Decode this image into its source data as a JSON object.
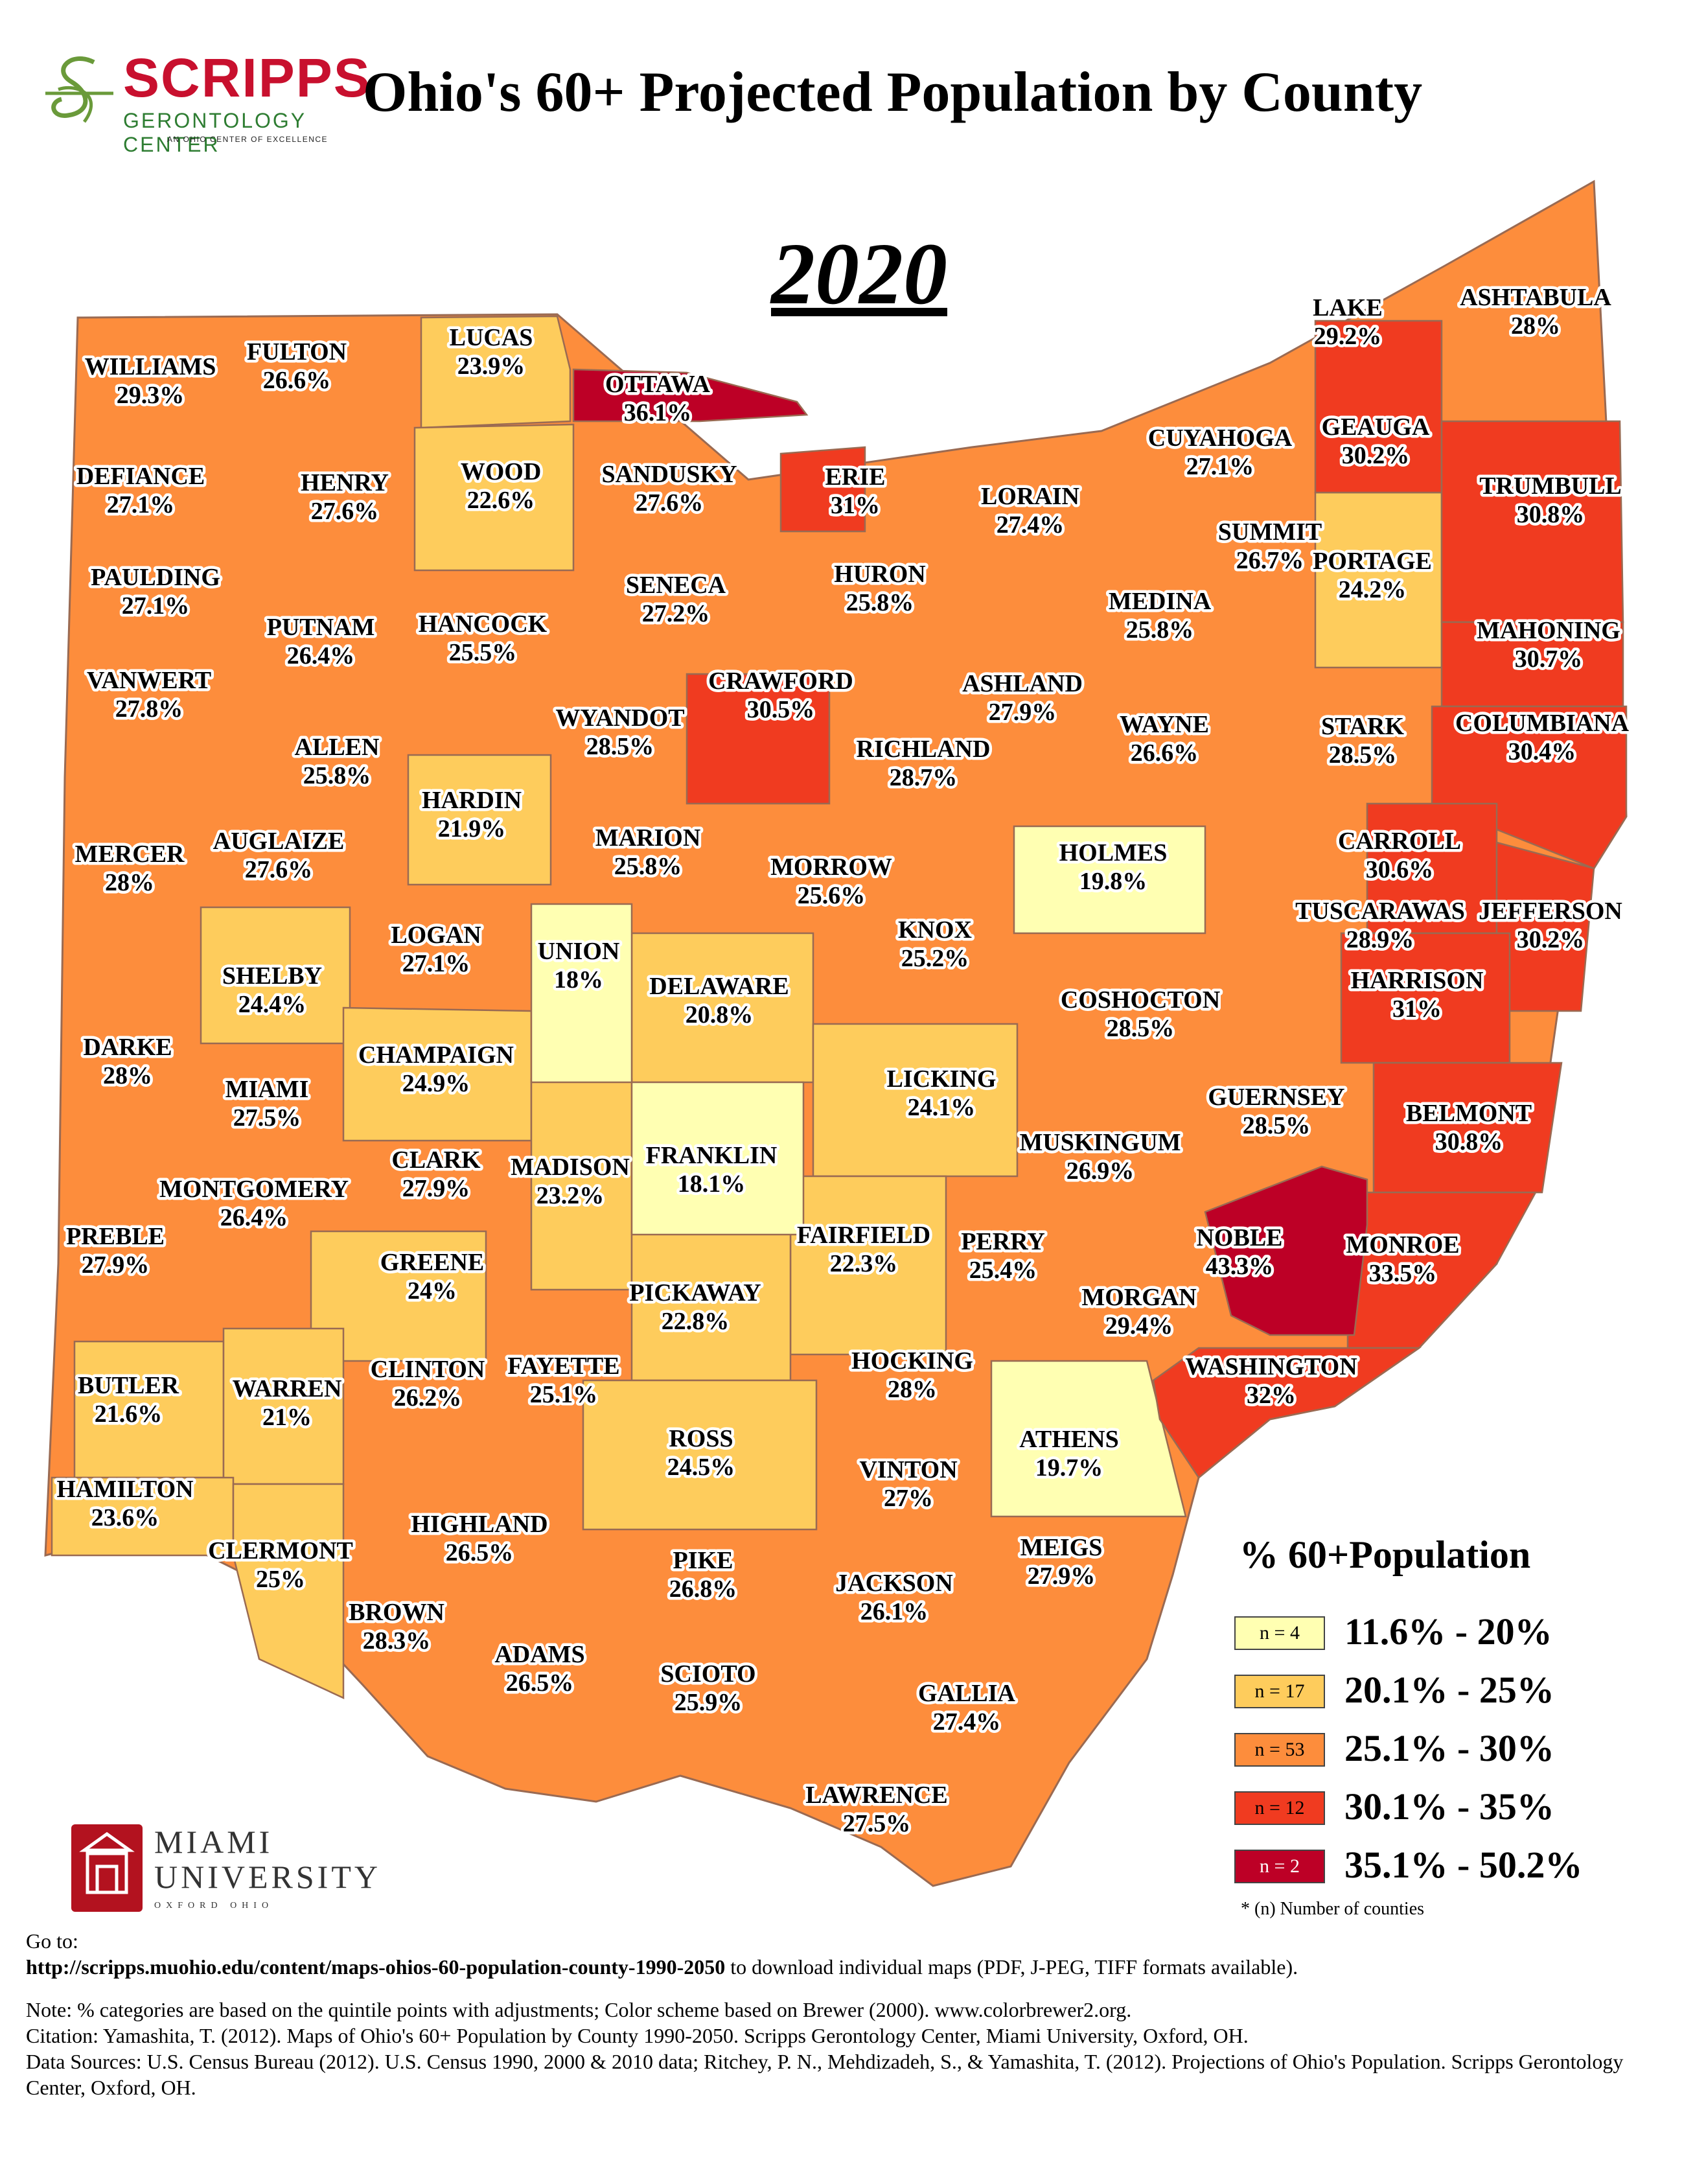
{
  "header": {
    "logo_word": "SCRIPPS",
    "logo_sub": "GERONTOLOGY CENTER",
    "logo_sub2": "AN OHIO CENTER OF EXCELLENCE",
    "title": "Ohio's 60+ Projected Population by County",
    "year": "2020"
  },
  "colors": {
    "class1": "#ffffb2",
    "class2": "#fecc5c",
    "class3": "#fd8d3c",
    "class4": "#f03b20",
    "class5": "#bd0026",
    "boundary": "#9a6a52"
  },
  "legend": {
    "title": "% 60+Population",
    "classes": [
      {
        "count": "n = 4",
        "range": "11.6% - 20%"
      },
      {
        "count": "n = 17",
        "range": "20.1% - 25%"
      },
      {
        "count": "n = 53",
        "range": "25.1% - 30%"
      },
      {
        "count": "n = 12",
        "range": "30.1% - 35%"
      },
      {
        "count": "n = 2",
        "range": "35.1% - 50.2%"
      }
    ],
    "note": "* (n) Number of counties"
  },
  "counties": [
    {
      "name": "WILLIAMS",
      "value": "29.3%"
    },
    {
      "name": "FULTON",
      "value": "26.6%"
    },
    {
      "name": "LUCAS",
      "value": "23.9%"
    },
    {
      "name": "OTTAWA",
      "value": "36.1%"
    },
    {
      "name": "DEFIANCE",
      "value": "27.1%"
    },
    {
      "name": "HENRY",
      "value": "27.6%"
    },
    {
      "name": "WOOD",
      "value": "22.6%"
    },
    {
      "name": "SANDUSKY",
      "value": "27.6%"
    },
    {
      "name": "ERIE",
      "value": "31%"
    },
    {
      "name": "LORAIN",
      "value": "27.4%"
    },
    {
      "name": "CUYAHOGA",
      "value": "27.1%"
    },
    {
      "name": "LAKE",
      "value": "29.2%"
    },
    {
      "name": "GEAUGA",
      "value": "30.2%"
    },
    {
      "name": "ASHTABULA",
      "value": "28%"
    },
    {
      "name": "TRUMBULL",
      "value": "30.8%"
    },
    {
      "name": "PAULDING",
      "value": "27.1%"
    },
    {
      "name": "PUTNAM",
      "value": "26.4%"
    },
    {
      "name": "HANCOCK",
      "value": "25.5%"
    },
    {
      "name": "SENECA",
      "value": "27.2%"
    },
    {
      "name": "HURON",
      "value": "25.8%"
    },
    {
      "name": "MEDINA",
      "value": "25.8%"
    },
    {
      "name": "SUMMIT",
      "value": "26.7%"
    },
    {
      "name": "PORTAGE",
      "value": "24.2%"
    },
    {
      "name": "MAHONING",
      "value": "30.7%"
    },
    {
      "name": "VANWERT",
      "value": "27.8%"
    },
    {
      "name": "ALLEN",
      "value": "25.8%"
    },
    {
      "name": "WYANDOT",
      "value": "28.5%"
    },
    {
      "name": "CRAWFORD",
      "value": "30.5%"
    },
    {
      "name": "ASHLAND",
      "value": "27.9%"
    },
    {
      "name": "RICHLAND",
      "value": "28.7%"
    },
    {
      "name": "WAYNE",
      "value": "26.6%"
    },
    {
      "name": "STARK",
      "value": "28.5%"
    },
    {
      "name": "COLUMBIANA",
      "value": "30.4%"
    },
    {
      "name": "MERCER",
      "value": "28%"
    },
    {
      "name": "AUGLAIZE",
      "value": "27.6%"
    },
    {
      "name": "HARDIN",
      "value": "21.9%"
    },
    {
      "name": "MARION",
      "value": "25.8%"
    },
    {
      "name": "MORROW",
      "value": "25.6%"
    },
    {
      "name": "HOLMES",
      "value": "19.8%"
    },
    {
      "name": "CARROLL",
      "value": "30.6%"
    },
    {
      "name": "TUSCARAWAS",
      "value": "28.9%"
    },
    {
      "name": "JEFFERSON",
      "value": "30.2%"
    },
    {
      "name": "SHELBY",
      "value": "24.4%"
    },
    {
      "name": "LOGAN",
      "value": "27.1%"
    },
    {
      "name": "UNION",
      "value": "18%"
    },
    {
      "name": "DELAWARE",
      "value": "20.8%"
    },
    {
      "name": "KNOX",
      "value": "25.2%"
    },
    {
      "name": "COSHOCTON",
      "value": "28.5%"
    },
    {
      "name": "HARRISON",
      "value": "31%"
    },
    {
      "name": "DARKE",
      "value": "28%"
    },
    {
      "name": "MIAMI",
      "value": "27.5%"
    },
    {
      "name": "CHAMPAIGN",
      "value": "24.9%"
    },
    {
      "name": "LICKING",
      "value": "24.1%"
    },
    {
      "name": "GUERNSEY",
      "value": "28.5%"
    },
    {
      "name": "BELMONT",
      "value": "30.8%"
    },
    {
      "name": "CLARK",
      "value": "27.9%"
    },
    {
      "name": "MADISON",
      "value": "23.2%"
    },
    {
      "name": "FRANKLIN",
      "value": "18.1%"
    },
    {
      "name": "MUSKINGUM",
      "value": "26.9%"
    },
    {
      "name": "MONTGOMERY",
      "value": "26.4%"
    },
    {
      "name": "PREBLE",
      "value": "27.9%"
    },
    {
      "name": "GREENE",
      "value": "24%"
    },
    {
      "name": "FAIRFIELD",
      "value": "22.3%"
    },
    {
      "name": "PERRY",
      "value": "25.4%"
    },
    {
      "name": "NOBLE",
      "value": "43.3%"
    },
    {
      "name": "MONROE",
      "value": "33.5%"
    },
    {
      "name": "PICKAWAY",
      "value": "22.8%"
    },
    {
      "name": "MORGAN",
      "value": "29.4%"
    },
    {
      "name": "BUTLER",
      "value": "21.6%"
    },
    {
      "name": "WARREN",
      "value": "21%"
    },
    {
      "name": "CLINTON",
      "value": "26.2%"
    },
    {
      "name": "FAYETTE",
      "value": "25.1%"
    },
    {
      "name": "HOCKING",
      "value": "28%"
    },
    {
      "name": "WASHINGTON",
      "value": "32%"
    },
    {
      "name": "ROSS",
      "value": "24.5%"
    },
    {
      "name": "ATHENS",
      "value": "19.7%"
    },
    {
      "name": "VINTON",
      "value": "27%"
    },
    {
      "name": "HAMILTON",
      "value": "23.6%"
    },
    {
      "name": "CLERMONT",
      "value": "25%"
    },
    {
      "name": "HIGHLAND",
      "value": "26.5%"
    },
    {
      "name": "PIKE",
      "value": "26.8%"
    },
    {
      "name": "JACKSON",
      "value": "26.1%"
    },
    {
      "name": "MEIGS",
      "value": "27.9%"
    },
    {
      "name": "BROWN",
      "value": "28.3%"
    },
    {
      "name": "ADAMS",
      "value": "26.5%"
    },
    {
      "name": "SCIOTO",
      "value": "25.9%"
    },
    {
      "name": "GALLIA",
      "value": "27.4%"
    },
    {
      "name": "LAWRENCE",
      "value": "27.5%"
    }
  ],
  "miami": {
    "word1": "MIAMI",
    "word2": "UNIVERSITY",
    "sub": "OXFORD OHIO"
  },
  "footer": {
    "goto": "Go to:",
    "url": "http://scripps.muohio.edu/content/maps-ohios-60-population-county-1990-2050",
    "url_suffix": " to download individual maps (PDF, J-PEG, TIFF formats available).",
    "note": "Note: % categories are based on the quintile points with adjustments; Color scheme based on Brewer (2000). www.colorbrewer2.org.",
    "citation": "Citation: Yamashita, T. (2012). Maps of Ohio's 60+ Population by County 1990-2050. Scripps Gerontology Center, Miami University, Oxford, OH.",
    "sources": "Data Sources: U.S. Census Bureau (2012). U.S. Census 1990, 2000 & 2010 data; Ritchey, P. N., Mehdizadeh, S., & Yamashita, T. (2012). Projections of Ohio's Population. Scripps Gerontology Center, Oxford, OH."
  }
}
